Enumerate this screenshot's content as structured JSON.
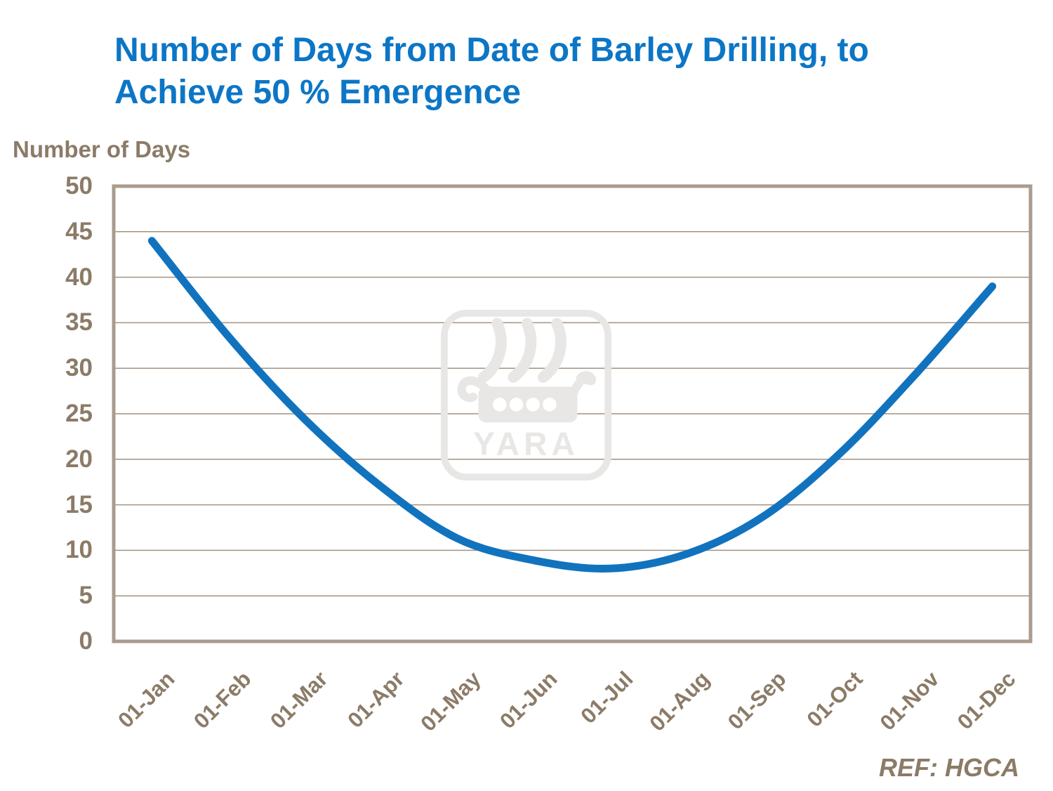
{
  "header": {
    "title_line1": "Number of Days from Date of Barley Drilling, to",
    "title_line2": "Achieve 50 % Emergence"
  },
  "footer": {
    "ref": "REF: HGCA"
  },
  "watermark": {
    "brand": "YARA"
  },
  "colors": {
    "title": "#0c76c6",
    "line": "#1173be",
    "axis_text": "#8b7b67",
    "gridline": "#a29282",
    "plot_border": "#a99c8e",
    "watermark": "#e8e7e5"
  },
  "chart_data": {
    "type": "line",
    "title": "Number of Days from Date of Barley Drilling, to Achieve 50 % Emergence",
    "ylabel": "Number of Days",
    "xlabel": "",
    "categories": [
      "01-Jan",
      "01-Feb",
      "01-Mar",
      "01-Apr",
      "01-May",
      "01-Jun",
      "01-Jul",
      "01-Aug",
      "01-Sep",
      "01-Oct",
      "01-Nov",
      "01-Dec"
    ],
    "values": [
      44,
      33.5,
      24.4,
      17,
      11.3,
      8.9,
      8,
      9.6,
      13.7,
      20.6,
      29.4,
      39
    ],
    "ylim": [
      0,
      50
    ],
    "yticks": [
      0,
      5,
      10,
      15,
      20,
      25,
      30,
      35,
      40,
      45,
      50
    ],
    "grid": "horizontal",
    "legend": "none",
    "annotation": "REF: HGCA"
  }
}
